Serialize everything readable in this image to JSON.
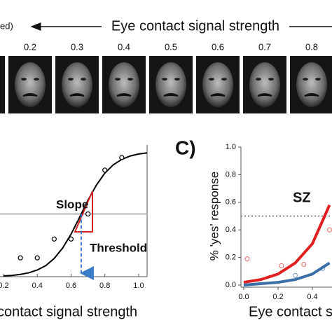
{
  "header": {
    "left_text": "ed)",
    "title": "Eye contact signal strength"
  },
  "faces": {
    "labels": [
      0.2,
      0.3,
      0.4,
      0.5,
      0.6,
      0.7,
      0.8
    ]
  },
  "chart_data": [
    {
      "type": "line",
      "xlabel": "contact signal strength",
      "xlim": [
        0.2,
        1.05
      ],
      "ylim": [
        0,
        1.05
      ],
      "xticks": [
        0.2,
        0.4,
        0.6,
        0.8,
        {
          "value": 1.0,
          "label": "1.0"
        }
      ],
      "points": {
        "x": [
          0.3,
          0.4,
          0.5,
          0.6,
          0.7,
          0.8,
          0.9
        ],
        "values": [
          0.15,
          0.15,
          0.3,
          0.3,
          0.5,
          0.85,
          0.95
        ],
        "color": "#000000"
      },
      "fit": {
        "x": [
          0.2,
          0.25,
          0.3,
          0.35,
          0.4,
          0.45,
          0.5,
          0.55,
          0.6,
          0.65,
          0.7,
          0.75,
          0.8,
          0.85,
          0.9,
          0.95,
          1.0,
          1.05
        ],
        "values": [
          0.006,
          0.01,
          0.018,
          0.031,
          0.053,
          0.088,
          0.145,
          0.228,
          0.339,
          0.472,
          0.61,
          0.73,
          0.826,
          0.892,
          0.935,
          0.962,
          0.978,
          0.987
        ],
        "color": "#000000"
      },
      "reference_line": 0.5,
      "threshold": 0.66,
      "slope_label": "Slope",
      "threshold_label": "Threshold",
      "slope_color": "#d42222",
      "threshold_color": "#3b7dc8"
    },
    {
      "type": "line",
      "panel_label": "C)",
      "xlabel": "Eye contact s",
      "ylabel": "% 'yes' response",
      "xlim": [
        0,
        0.51
      ],
      "ylim": [
        0,
        1.0
      ],
      "xticks": [
        {
          "value": 0,
          "label": "0.0"
        },
        0.2,
        0.4
      ],
      "yticks": [
        {
          "value": 0,
          "label": "0.0"
        },
        0.2,
        0.4,
        0.6,
        0.8,
        {
          "value": 1.0,
          "label": "1.0"
        }
      ],
      "reference_line": 0.5,
      "series_label": "SZ",
      "series": [
        {
          "color": "#e02020",
          "x": [
            0,
            0.1,
            0.2,
            0.3,
            0.4,
            0.5
          ],
          "values": [
            0.02,
            0.04,
            0.08,
            0.16,
            0.3,
            0.58
          ],
          "points": {
            "x": [
              0.02,
              0.22,
              0.35,
              0.5
            ],
            "values": [
              0.19,
              0.14,
              0.15,
              0.4
            ]
          }
        },
        {
          "color": "#3a6fa8",
          "x": [
            0,
            0.1,
            0.2,
            0.3,
            0.4,
            0.5
          ],
          "values": [
            0.0,
            0.01,
            0.02,
            0.04,
            0.08,
            0.16
          ],
          "points": {
            "x": [
              0.3,
              0.46
            ],
            "values": [
              0.07,
              0.12
            ]
          }
        }
      ]
    }
  ]
}
